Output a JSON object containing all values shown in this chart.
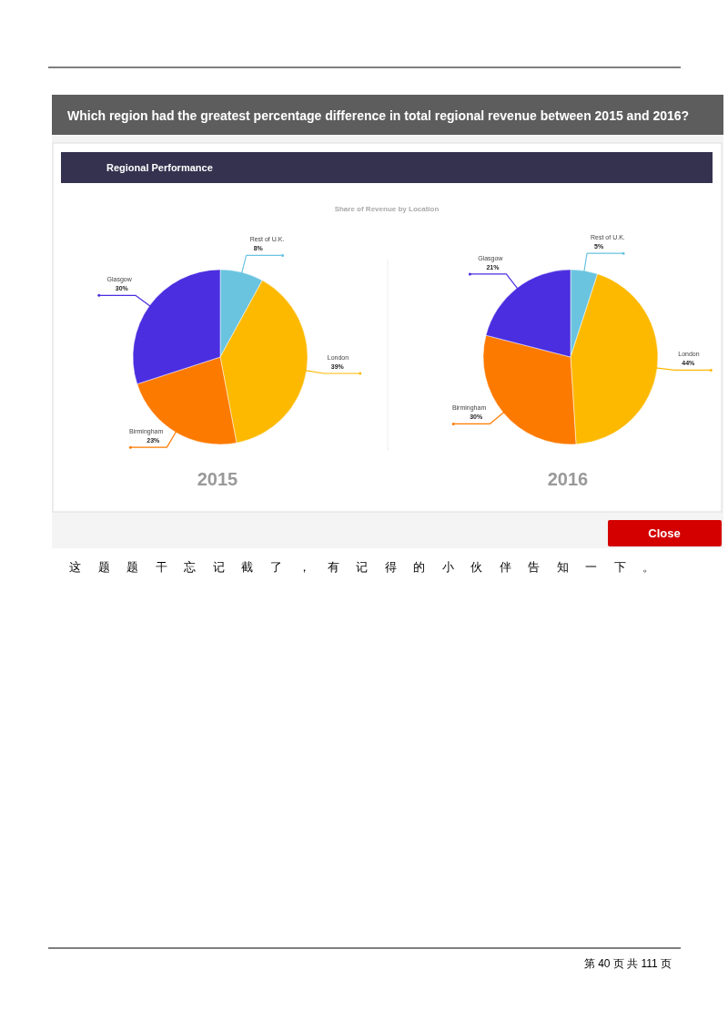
{
  "chart_data": [
    {
      "type": "pie",
      "title": "2015",
      "categories": [
        "Rest of U.K.",
        "London",
        "Birmingham",
        "Glasgow"
      ],
      "values": [
        8,
        39,
        23,
        30
      ],
      "value_labels": [
        "8%",
        "39%",
        "23%",
        "30%"
      ],
      "colors": [
        "#6ac4e0",
        "#fdb900",
        "#fd7a00",
        "#4a2ee0"
      ],
      "annotations": [
        "Which region had the greatest percentage difference in total regional revenue between 2015 and 2016?",
        "Regional Performance",
        "Share of Revenue by Location"
      ]
    },
    {
      "type": "pie",
      "title": "2016",
      "categories": [
        "Rest of U.K.",
        "London",
        "Birmingham",
        "Glasgow"
      ],
      "values": [
        5,
        44,
        30,
        21
      ],
      "value_labels": [
        "5%",
        "44%",
        "30%",
        "21%"
      ],
      "colors": [
        "#6ac4e0",
        "#fdb900",
        "#fd7a00",
        "#4a2ee0"
      ],
      "annotations": [
        "Close",
        "这题题干忘记截了，有记得的小伙伴告知一下。",
        "第 40 页 共 111 页"
      ]
    }
  ]
}
